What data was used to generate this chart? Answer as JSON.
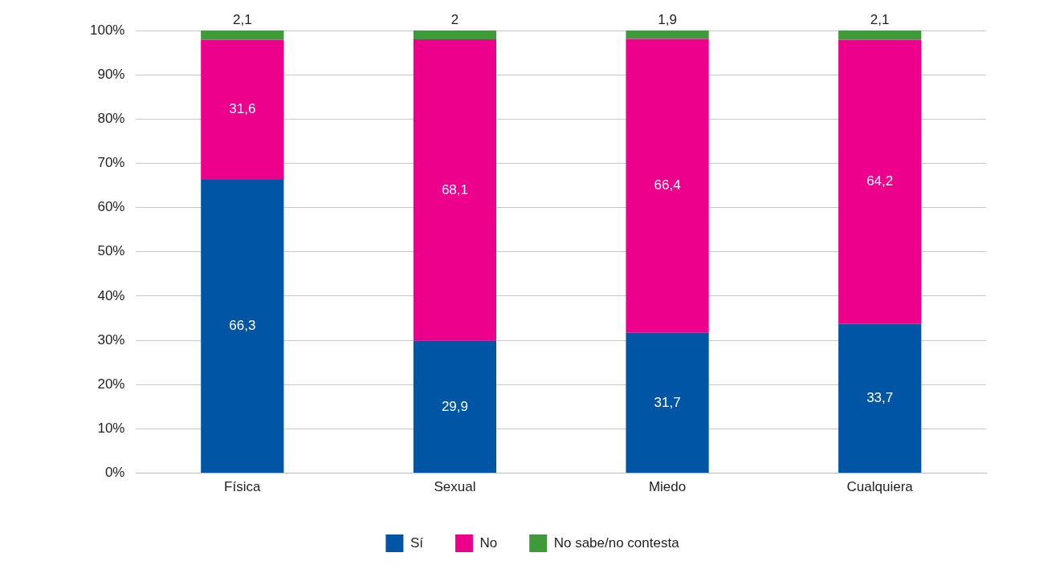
{
  "chart_data": {
    "type": "bar",
    "stacked": true,
    "categories": [
      "Física",
      "Sexual",
      "Miedo",
      "Cualquiera"
    ],
    "series": [
      {
        "name": "Sí",
        "color": "#0055a4",
        "values": [
          66.3,
          29.9,
          31.7,
          33.7
        ],
        "value_labels": [
          "66,3",
          "29,9",
          "31,7",
          "33,7"
        ]
      },
      {
        "name": "No",
        "color": "#ec008c",
        "values": [
          31.6,
          68.1,
          66.4,
          64.2
        ],
        "value_labels": [
          "31,6",
          "68,1",
          "66,4",
          "64,2"
        ]
      },
      {
        "name": "No sabe/no contesta",
        "color": "#3f9b3a",
        "values": [
          2.1,
          2,
          1.9,
          2.1
        ],
        "value_labels": [
          "2,1",
          "2",
          "1,9",
          "2,1"
        ]
      }
    ],
    "ylim": [
      0,
      100
    ],
    "yticks": [
      {
        "value": 0,
        "label": "0%"
      },
      {
        "value": 10,
        "label": "10%"
      },
      {
        "value": 20,
        "label": "20%"
      },
      {
        "value": 30,
        "label": "30%"
      },
      {
        "value": 40,
        "label": "40%"
      },
      {
        "value": 50,
        "label": "50%"
      },
      {
        "value": 60,
        "label": "60%"
      },
      {
        "value": 70,
        "label": "70%"
      },
      {
        "value": 80,
        "label": "80%"
      },
      {
        "value": 90,
        "label": "90%"
      },
      {
        "value": 100,
        "label": "100%"
      }
    ],
    "grid": "y",
    "legend": "bottom"
  }
}
